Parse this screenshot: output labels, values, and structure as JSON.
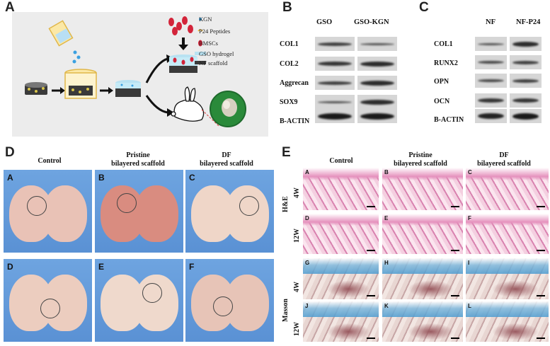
{
  "panels": {
    "a": {
      "letter": "A",
      "legend": [
        "KGN",
        "P24 Peptides",
        "BMSCs",
        "GSO hydrogel",
        "NF scaffold"
      ]
    },
    "b": {
      "letter": "B",
      "columns": [
        "GSO",
        "GSO-KGN"
      ],
      "rows": [
        "COL1",
        "COL2",
        "Aggrecan",
        "SOX9",
        "B-ACTIN"
      ]
    },
    "c": {
      "letter": "C",
      "columns": [
        "NF",
        "NF-P24"
      ],
      "rows": [
        "COL1",
        "RUNX2",
        "OPN",
        "OCN",
        "B-ACTIN"
      ]
    },
    "d": {
      "letter": "D",
      "columns": [
        "Control",
        "Pristine\nbilayered scaffold",
        "DF\nbilayered scaffold"
      ],
      "tiles": [
        "A",
        "B",
        "C",
        "D",
        "E",
        "F"
      ]
    },
    "e": {
      "letter": "E",
      "columns": [
        "Control",
        "Pristine\nbilayered scaffold",
        "DF\nbilayered scaffold"
      ],
      "stains": [
        "H&E",
        "Masson"
      ],
      "timepoints": [
        "4W",
        "12W",
        "4W",
        "12W"
      ],
      "tiles": [
        "A",
        "B",
        "C",
        "D",
        "E",
        "F",
        "G",
        "H",
        "I",
        "J",
        "K",
        "L"
      ]
    }
  },
  "colors": {
    "panel_bg": "#ececec",
    "photo_bg": "#6ea4e0",
    "he_pink": "#e07fb0",
    "masson_blue": "#4c9bd0",
    "masson_red": "#a24a5a"
  }
}
